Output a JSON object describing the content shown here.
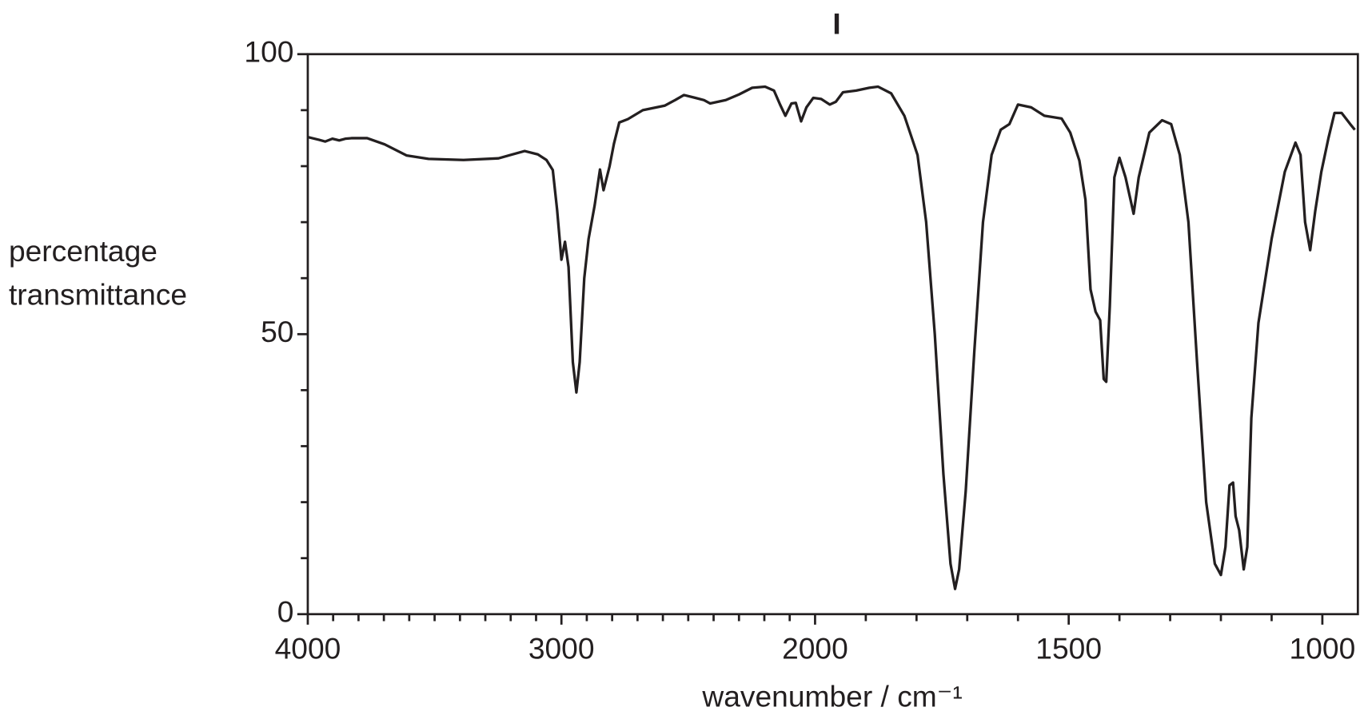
{
  "chart_data": {
    "type": "line",
    "title": "I",
    "ylabel": [
      "percentage",
      "transmittance"
    ],
    "xlabel": "wavenumber / cm⁻¹",
    "color": "#231f20",
    "x_scale_change": {
      "at": 2000,
      "factor": 2
    },
    "xlim": [
      4000,
      930
    ],
    "ylim": [
      0,
      100
    ],
    "xticks": [
      4000,
      3000,
      2000,
      1500,
      1000
    ],
    "xminorticks": [
      3900,
      3800,
      3700,
      3600,
      3500,
      3400,
      3300,
      3200,
      3100,
      2900,
      2800,
      2700,
      2600,
      2500,
      2400,
      2300,
      2200,
      2100,
      1900,
      1800,
      1700,
      1600,
      1400,
      1300,
      1200,
      1100
    ],
    "yticks": [
      0,
      50,
      100
    ],
    "yminorticks": [
      10,
      20,
      30,
      40,
      60,
      70,
      80,
      90
    ],
    "x": [
      4000,
      3955,
      3931,
      3903,
      3876,
      3852,
      3828,
      3766,
      3697,
      3610,
      3524,
      3386,
      3248,
      3145,
      3093,
      3059,
      3034,
      3017,
      3000,
      2986,
      2972,
      2955,
      2941,
      2928,
      2910,
      2893,
      2869,
      2848,
      2834,
      2810,
      2793,
      2772,
      2738,
      2679,
      2593,
      2552,
      2517,
      2472,
      2438,
      2414,
      2352,
      2300,
      2248,
      2197,
      2162,
      2138,
      2117,
      2093,
      2076,
      2055,
      2034,
      2007,
      1988,
      1971,
      1959,
      1945,
      1919,
      1893,
      1876,
      1850,
      1824,
      1798,
      1781,
      1764,
      1747,
      1733,
      1724,
      1716,
      1703,
      1686,
      1669,
      1652,
      1634,
      1617,
      1600,
      1574,
      1548,
      1514,
      1497,
      1479,
      1467,
      1457,
      1447,
      1438,
      1431,
      1426,
      1419,
      1410,
      1400,
      1388,
      1372,
      1362,
      1341,
      1316,
      1298,
      1281,
      1264,
      1247,
      1229,
      1212,
      1200,
      1191,
      1183,
      1176,
      1171,
      1164,
      1155,
      1148,
      1140,
      1126,
      1100,
      1074,
      1053,
      1043,
      1034,
      1024,
      1014,
      1002,
      988,
      976,
      962,
      945,
      936
    ],
    "values": [
      85.2,
      84.7,
      84.4,
      84.9,
      84.6,
      84.9,
      85,
      85,
      83.9,
      81.9,
      81.3,
      81.1,
      81.4,
      82.7,
      82.1,
      81.1,
      79.3,
      72.2,
      63.3,
      66.5,
      62,
      45,
      39.6,
      45,
      60,
      67,
      73,
      79.4,
      75.7,
      80,
      84,
      87.8,
      88.4,
      90,
      90.8,
      91.8,
      92.7,
      92.2,
      91.8,
      91.2,
      91.8,
      92.8,
      94,
      94.2,
      93.5,
      91,
      89,
      91.2,
      91.3,
      88,
      90.5,
      92.2,
      92,
      91,
      91.5,
      93.2,
      93.5,
      94,
      94.2,
      93,
      89,
      82,
      70,
      50,
      25,
      9,
      4.5,
      8,
      22,
      47,
      70,
      82,
      86.5,
      87.5,
      91,
      90.5,
      89,
      88.5,
      86,
      81,
      74,
      58,
      54,
      52.5,
      42,
      41.5,
      55,
      78,
      81.5,
      78,
      71.5,
      78,
      86,
      88.2,
      87.5,
      82,
      70,
      45,
      20,
      9,
      7,
      12,
      23,
      23.5,
      17.5,
      15,
      8,
      12,
      35,
      52,
      67,
      79,
      84.2,
      82,
      70,
      65,
      72,
      79,
      85,
      89.5,
      89.5,
      87.5,
      86.5
    ]
  }
}
